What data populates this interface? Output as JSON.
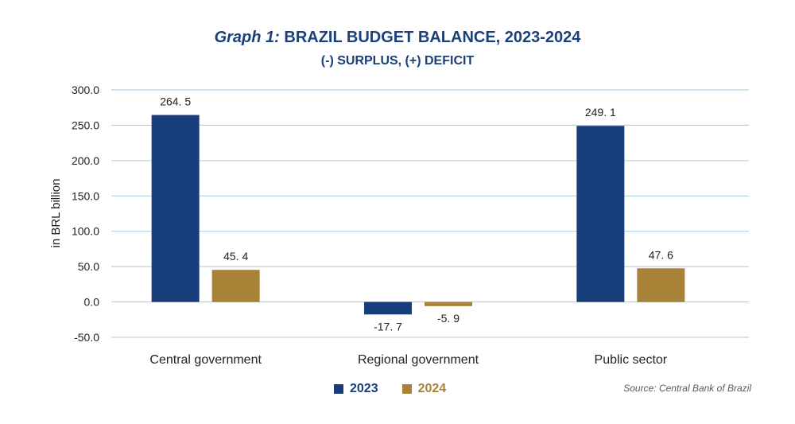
{
  "chart_data": {
    "type": "bar",
    "title_prefix": "Graph 1:",
    "title": "BRAZIL BUDGET BALANCE, 2023-2024",
    "subtitle": "(-) SURPLUS, (+) DEFICIT",
    "ylabel": "in BRL billion",
    "categories": [
      "Central government",
      "Regional government",
      "Public sector"
    ],
    "series": [
      {
        "name": "2023",
        "values": [
          264.5,
          -17.7,
          249.1
        ],
        "labels": [
          "264. 5",
          "-17. 7",
          "249. 1"
        ],
        "color": "#173e7b"
      },
      {
        "name": "2024",
        "values": [
          45.4,
          -5.9,
          47.6
        ],
        "labels": [
          "45. 4",
          "-5. 9",
          "47. 6"
        ],
        "color": "#a88237"
      }
    ],
    "ylim": [
      -50,
      300
    ],
    "yticks": [
      300,
      250,
      200,
      150,
      100,
      50,
      0,
      -50
    ],
    "ytick_labels": [
      "300.0",
      "250.0",
      "200.0",
      "150.0",
      "100.0",
      "50.0",
      "0.0",
      "-50.0"
    ],
    "grid": true,
    "legend_position": "bottom-center",
    "source": "Source: Central Bank of Brazil"
  }
}
